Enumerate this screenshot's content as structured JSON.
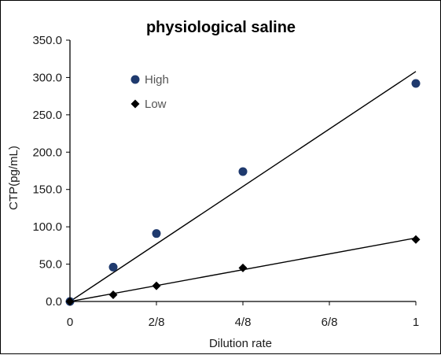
{
  "chart_data": {
    "type": "scatter",
    "title": "physiological saline",
    "xlabel": "Dilution rate",
    "ylabel": "CTP(pg/mL)",
    "xlim": [
      0,
      1
    ],
    "ylim": [
      0,
      350
    ],
    "x_ticks": [
      {
        "value": 0,
        "label": "0"
      },
      {
        "value": 0.25,
        "label": "2/8"
      },
      {
        "value": 0.5,
        "label": "4/8"
      },
      {
        "value": 0.75,
        "label": "6/8"
      },
      {
        "value": 1,
        "label": "1"
      }
    ],
    "y_ticks": [
      {
        "value": 0,
        "label": "0.0"
      },
      {
        "value": 50,
        "label": "50.0"
      },
      {
        "value": 100,
        "label": "100.0"
      },
      {
        "value": 150,
        "label": "150.0"
      },
      {
        "value": 200,
        "label": "200.0"
      },
      {
        "value": 250,
        "label": "250.0"
      },
      {
        "value": 300,
        "label": "300.0"
      },
      {
        "value": 350,
        "label": "350.0"
      }
    ],
    "legend_position": "top-left",
    "grid": false,
    "series": [
      {
        "name": "High",
        "marker": "circle",
        "color": "#1f3a6e",
        "x": [
          0,
          0.125,
          0.25,
          0.5,
          1
        ],
        "y": [
          0,
          46,
          91,
          174,
          292
        ],
        "trendline": {
          "x": [
            0,
            1
          ],
          "y": [
            0,
            308
          ]
        }
      },
      {
        "name": "Low",
        "marker": "diamond",
        "color": "#000000",
        "x": [
          0,
          0.125,
          0.25,
          0.5,
          1
        ],
        "y": [
          0,
          9,
          21,
          45,
          83
        ],
        "trendline": {
          "x": [
            0,
            1
          ],
          "y": [
            0,
            85
          ]
        }
      }
    ]
  }
}
